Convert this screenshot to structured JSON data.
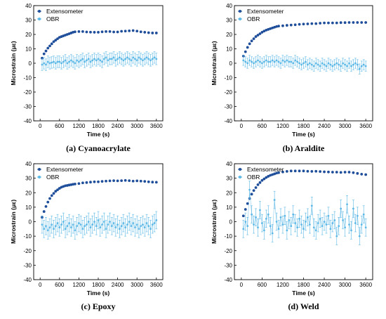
{
  "chart_data": [
    {
      "type": "scatter",
      "caption": "(a) Cyanoacrylate",
      "xlabel": "Time (s)",
      "ylabel": "Microstrain (με)",
      "xlim": [
        -200,
        3800
      ],
      "ylim": [
        -40,
        40
      ],
      "xticks": [
        0,
        600,
        1200,
        1800,
        2400,
        3000,
        3600
      ],
      "yticks": [
        -40,
        -30,
        -20,
        -10,
        0,
        10,
        20,
        30,
        40
      ],
      "legend": "top-left",
      "series": [
        {
          "name": "Extensometer",
          "color": "#1f4e9a",
          "x": [
            60,
            120,
            180,
            240,
            300,
            360,
            420,
            480,
            540,
            600,
            660,
            720,
            780,
            840,
            900,
            960,
            1020,
            1080,
            1200,
            1320,
            1440,
            1560,
            1680,
            1800,
            1920,
            2040,
            2160,
            2280,
            2400,
            2520,
            2640,
            2760,
            2880,
            3000,
            3120,
            3240,
            3360,
            3480,
            3600
          ],
          "y": [
            3.5,
            6.5,
            8.5,
            10.5,
            12,
            13.5,
            15,
            16,
            17,
            18,
            18.5,
            19,
            19.5,
            20,
            20.5,
            21,
            21.5,
            21.8,
            22,
            22,
            21.7,
            21.6,
            21.5,
            21.5,
            21.8,
            22,
            22,
            21.7,
            21.7,
            22.2,
            22.3,
            22.5,
            22.7,
            22.3,
            21.8,
            21.5,
            21.2,
            21,
            21
          ]
        },
        {
          "name": "OBR",
          "color": "#5cb8e6",
          "x": [
            60,
            120,
            180,
            240,
            300,
            360,
            420,
            480,
            540,
            600,
            660,
            720,
            780,
            840,
            900,
            960,
            1020,
            1080,
            1140,
            1200,
            1260,
            1320,
            1380,
            1440,
            1500,
            1560,
            1620,
            1680,
            1740,
            1800,
            1860,
            1920,
            1980,
            2040,
            2100,
            2160,
            2220,
            2280,
            2340,
            2400,
            2460,
            2520,
            2580,
            2640,
            2700,
            2760,
            2820,
            2880,
            2940,
            3000,
            3060,
            3120,
            3180,
            3240,
            3300,
            3360,
            3420,
            3480,
            3540,
            3600
          ],
          "y": [
            -1,
            0,
            -1,
            1,
            0,
            0.5,
            1,
            0,
            1,
            1,
            0,
            1,
            2,
            0,
            1,
            2,
            1,
            0,
            2,
            1,
            2,
            3,
            1,
            2,
            3,
            1,
            2,
            3,
            2,
            3,
            2,
            1,
            3,
            4,
            2,
            3,
            3,
            4,
            2,
            3,
            4,
            3,
            2,
            3,
            4,
            3,
            2,
            4,
            3,
            2,
            4,
            3,
            2,
            3,
            4,
            3,
            2,
            3,
            4,
            3
          ],
          "err": 4
        }
      ]
    },
    {
      "type": "scatter",
      "caption": "(b) Araldite",
      "xlabel": "Time (s)",
      "ylabel": "Microstrain (με)",
      "xlim": [
        -200,
        3800
      ],
      "ylim": [
        -40,
        40
      ],
      "xticks": [
        0,
        600,
        1200,
        1800,
        2400,
        3000,
        3600
      ],
      "yticks": [
        -40,
        -30,
        -20,
        -10,
        0,
        10,
        20,
        30,
        40
      ],
      "legend": "top-left",
      "series": [
        {
          "name": "Extensometer",
          "color": "#1f4e9a",
          "x": [
            60,
            120,
            180,
            240,
            300,
            360,
            420,
            480,
            540,
            600,
            660,
            720,
            780,
            840,
            900,
            960,
            1020,
            1080,
            1200,
            1320,
            1440,
            1560,
            1680,
            1800,
            1920,
            2040,
            2160,
            2280,
            2400,
            2520,
            2640,
            2760,
            2880,
            3000,
            3120,
            3240,
            3360,
            3480,
            3600
          ],
          "y": [
            5,
            8,
            11,
            13.5,
            15.5,
            17,
            18.5,
            19.5,
            20.5,
            21.5,
            22.3,
            23,
            23.5,
            24,
            24.5,
            25,
            25.5,
            25.8,
            26,
            26.3,
            26.5,
            26.7,
            27,
            27.2,
            27.3,
            27.5,
            27.5,
            27.8,
            28,
            28,
            28,
            28,
            28.2,
            28.2,
            28.3,
            28.3,
            28.3,
            28.3,
            28.3
          ]
        },
        {
          "name": "OBR",
          "color": "#5cb8e6",
          "x": [
            60,
            120,
            180,
            240,
            300,
            360,
            420,
            480,
            540,
            600,
            660,
            720,
            780,
            840,
            900,
            960,
            1020,
            1080,
            1140,
            1200,
            1260,
            1320,
            1380,
            1440,
            1500,
            1560,
            1620,
            1680,
            1740,
            1800,
            1860,
            1920,
            1980,
            2040,
            2100,
            2160,
            2220,
            2280,
            2340,
            2400,
            2460,
            2520,
            2580,
            2640,
            2700,
            2760,
            2820,
            2880,
            2940,
            3000,
            3060,
            3120,
            3180,
            3240,
            3300,
            3360,
            3420,
            3480,
            3540,
            3600
          ],
          "y": [
            2,
            1,
            0,
            2,
            1,
            0,
            1,
            2,
            1,
            0,
            1,
            2,
            1,
            1,
            2,
            1,
            2,
            1,
            0,
            2,
            1,
            2,
            1,
            1,
            0,
            2,
            1,
            0,
            -1,
            0,
            1,
            -1,
            0,
            -1,
            -2,
            0,
            -1,
            -2,
            0,
            -1,
            -2,
            0,
            -1,
            -2,
            -1,
            0,
            -1,
            -2,
            0,
            -1,
            -2,
            0,
            -2,
            -1,
            0,
            -1,
            -4,
            -2,
            -1,
            -2
          ],
          "err": 3.5
        }
      ]
    },
    {
      "type": "scatter",
      "caption": "(c) Epoxy",
      "xlabel": "Time (s)",
      "ylabel": "Microstrain (με)",
      "xlim": [
        -200,
        3800
      ],
      "ylim": [
        -40,
        40
      ],
      "xticks": [
        0,
        600,
        1200,
        1800,
        2400,
        3000,
        3600
      ],
      "yticks": [
        -40,
        -30,
        -20,
        -10,
        0,
        10,
        20,
        30,
        40
      ],
      "legend": "top-left",
      "series": [
        {
          "name": "Extensometer",
          "color": "#1f4e9a",
          "x": [
            60,
            120,
            180,
            240,
            300,
            360,
            420,
            480,
            540,
            600,
            660,
            720,
            780,
            840,
            900,
            960,
            1020,
            1080,
            1200,
            1320,
            1440,
            1560,
            1680,
            1800,
            1920,
            2040,
            2160,
            2280,
            2400,
            2520,
            2640,
            2760,
            2880,
            3000,
            3120,
            3240,
            3360,
            3480,
            3600
          ],
          "y": [
            3,
            7,
            10.5,
            13.5,
            16,
            18,
            19.5,
            21,
            22,
            23,
            23.8,
            24.3,
            24.8,
            25,
            25.3,
            25.5,
            25.8,
            26,
            26.3,
            26.8,
            27,
            27.3,
            27.5,
            27.5,
            27.8,
            28,
            28.2,
            28.3,
            28.2,
            28.3,
            28.5,
            28.3,
            28,
            28.2,
            28,
            27.8,
            27.5,
            27.3,
            27.2
          ]
        },
        {
          "name": "OBR",
          "color": "#5cb8e6",
          "x": [
            60,
            120,
            180,
            240,
            300,
            360,
            420,
            480,
            540,
            600,
            660,
            720,
            780,
            840,
            900,
            960,
            1020,
            1080,
            1140,
            1200,
            1260,
            1320,
            1380,
            1440,
            1500,
            1560,
            1620,
            1680,
            1740,
            1800,
            1860,
            1920,
            1980,
            2040,
            2100,
            2160,
            2220,
            2280,
            2340,
            2400,
            2460,
            2520,
            2580,
            2640,
            2700,
            2760,
            2820,
            2880,
            2940,
            3000,
            3060,
            3120,
            3180,
            3240,
            3300,
            3360,
            3420,
            3480,
            3540,
            3600
          ],
          "y": [
            -2,
            -5,
            -3,
            -6,
            -4,
            -2,
            -5,
            -3,
            -1,
            -4,
            -2,
            0,
            -5,
            -3,
            -1,
            -4,
            -2,
            -6,
            -3,
            -1,
            -2,
            -5,
            -3,
            -2,
            0,
            -4,
            -2,
            0,
            -3,
            1,
            -4,
            -2,
            0,
            -5,
            -2,
            0,
            -3,
            -1,
            -4,
            -2,
            -5,
            -3,
            -1,
            -4,
            -2,
            0,
            -3,
            -1,
            -4,
            -2,
            -5,
            -3,
            -2,
            -4,
            -1,
            -3,
            -5,
            -2,
            -1,
            1
          ],
          "err": 6
        }
      ]
    },
    {
      "type": "scatter",
      "caption": "(d) Weld",
      "xlabel": "Time (s)",
      "ylabel": "Microstrain (με)",
      "xlim": [
        -200,
        3800
      ],
      "ylim": [
        -40,
        40
      ],
      "xticks": [
        0,
        600,
        1200,
        1800,
        2400,
        3000,
        3600
      ],
      "yticks": [
        -40,
        -30,
        -20,
        -10,
        0,
        10,
        20,
        30,
        40
      ],
      "legend": "top-left",
      "series": [
        {
          "name": "Extensometer",
          "color": "#1f4e9a",
          "x": [
            60,
            120,
            180,
            240,
            300,
            360,
            420,
            480,
            540,
            600,
            660,
            720,
            780,
            840,
            900,
            960,
            1020,
            1080,
            1200,
            1320,
            1440,
            1560,
            1680,
            1800,
            1920,
            2040,
            2160,
            2280,
            2400,
            2520,
            2640,
            2760,
            2880,
            3000,
            3120,
            3240,
            3360,
            3480,
            3600
          ],
          "y": [
            4,
            8.5,
            12.5,
            16,
            19,
            21.5,
            23.5,
            25.5,
            27,
            28.5,
            29.5,
            30.5,
            31.3,
            32,
            32.5,
            33,
            33.5,
            33.8,
            34.3,
            34.7,
            35,
            35,
            35,
            35,
            34.8,
            34.7,
            34.8,
            34.6,
            34.4,
            34.3,
            34.2,
            34.2,
            34,
            34.2,
            34.2,
            33.8,
            33.3,
            32.8,
            32.5
          ]
        },
        {
          "name": "OBR",
          "color": "#5cb8e6",
          "x": [
            60,
            120,
            180,
            240,
            300,
            360,
            420,
            480,
            540,
            600,
            660,
            720,
            780,
            840,
            900,
            960,
            1020,
            1080,
            1140,
            1200,
            1260,
            1320,
            1380,
            1440,
            1500,
            1560,
            1620,
            1680,
            1740,
            1800,
            1860,
            1920,
            1980,
            2040,
            2100,
            2160,
            2220,
            2280,
            2340,
            2400,
            2460,
            2520,
            2580,
            2640,
            2700,
            2760,
            2820,
            2880,
            2940,
            3000,
            3060,
            3120,
            3180,
            3240,
            3300,
            3360,
            3420,
            3480,
            3540,
            3600
          ],
          "y": [
            -5,
            0,
            -3,
            22,
            5,
            -2,
            3,
            -4,
            8,
            -1,
            -6,
            2,
            5,
            -3,
            -8,
            15,
            0,
            -5,
            3,
            -2,
            4,
            -6,
            1,
            -3,
            5,
            -1,
            -4,
            2,
            -2,
            -5,
            0,
            3,
            -2,
            11,
            -4,
            -6,
            -1,
            2,
            -3,
            0,
            -2,
            4,
            -5,
            -1,
            1,
            -10,
            -3,
            9,
            1,
            -4,
            12,
            -2,
            -6,
            9,
            -1,
            4,
            -10,
            -2,
            5,
            -4
          ],
          "err": 6
        }
      ]
    }
  ]
}
